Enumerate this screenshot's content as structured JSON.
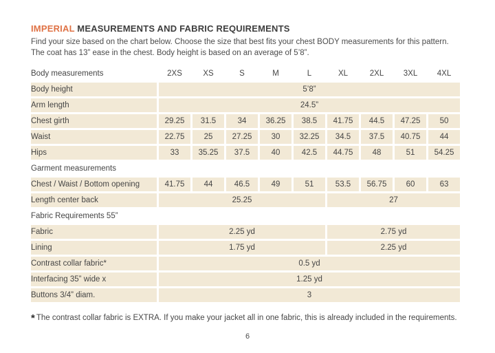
{
  "colors": {
    "accent_orange": "#DF7245",
    "cell_beige": "#F2E9D6",
    "text_dark": "#3E3E3E"
  },
  "header": {
    "title_accent": "IMPERIAL",
    "title_rest": " MEASUREMENTS AND FABRIC REQUIREMENTS",
    "intro_line1": "Find your size based on the chart below. Choose the size that best fits your chest BODY measurements for this pattern.",
    "intro_line2": "The coat has 13” ease in the chest. Body height is based on an average of 5’8”."
  },
  "table": {
    "sizes": [
      "2XS",
      "XS",
      "S",
      "M",
      "L",
      "XL",
      "2XL",
      "3XL",
      "4XL"
    ],
    "rows": [
      {
        "type": "header",
        "label": "Body measurements"
      },
      {
        "type": "merged",
        "label": "Body height",
        "value": "5’8”"
      },
      {
        "type": "merged",
        "label": "Arm length",
        "value": "24.5”"
      },
      {
        "type": "values",
        "label": "Chest girth",
        "cells": [
          "29.25",
          "31.5",
          "34",
          "36.25",
          "38.5",
          "41.75",
          "44.5",
          "47.25",
          "50"
        ]
      },
      {
        "type": "values",
        "label": "Waist",
        "cells": [
          "22.75",
          "25",
          "27.25",
          "30",
          "32.25",
          "34.5",
          "37.5",
          "40.75",
          "44"
        ]
      },
      {
        "type": "values",
        "label": "Hips",
        "cells": [
          "33",
          "35.25",
          "37.5",
          "40",
          "42.5",
          "44.75",
          "48",
          "51",
          "54.25"
        ]
      },
      {
        "type": "section",
        "label": "Garment measurements"
      },
      {
        "type": "values",
        "label": "Chest / Waist / Bottom opening",
        "cells": [
          "41.75",
          "44",
          "46.5",
          "49",
          "51",
          "53.5",
          "56.75",
          "60",
          "63"
        ]
      },
      {
        "type": "split",
        "label": "Length center back",
        "left": "25.25",
        "right": "27"
      },
      {
        "type": "section",
        "label": "Fabric Requirements 55”"
      },
      {
        "type": "split",
        "label": "Fabric",
        "left": "2.25 yd",
        "right": "2.75 yd"
      },
      {
        "type": "split",
        "label": "Lining",
        "left": "1.75 yd",
        "right": "2.25 yd"
      },
      {
        "type": "merged",
        "label": "Contrast collar fabric*",
        "value": "0.5 yd"
      },
      {
        "type": "merged",
        "label": "Interfacing  35” wide x",
        "value": "1.25 yd"
      },
      {
        "type": "merged",
        "label": "Buttons 3/4” diam.",
        "value": "3"
      }
    ]
  },
  "footnote": {
    "star": "*",
    "text": "The contrast collar fabric is EXTRA. If you make your jacket all in one fabric, this is already included in the requirements."
  },
  "footer": {
    "page_number": "6"
  }
}
